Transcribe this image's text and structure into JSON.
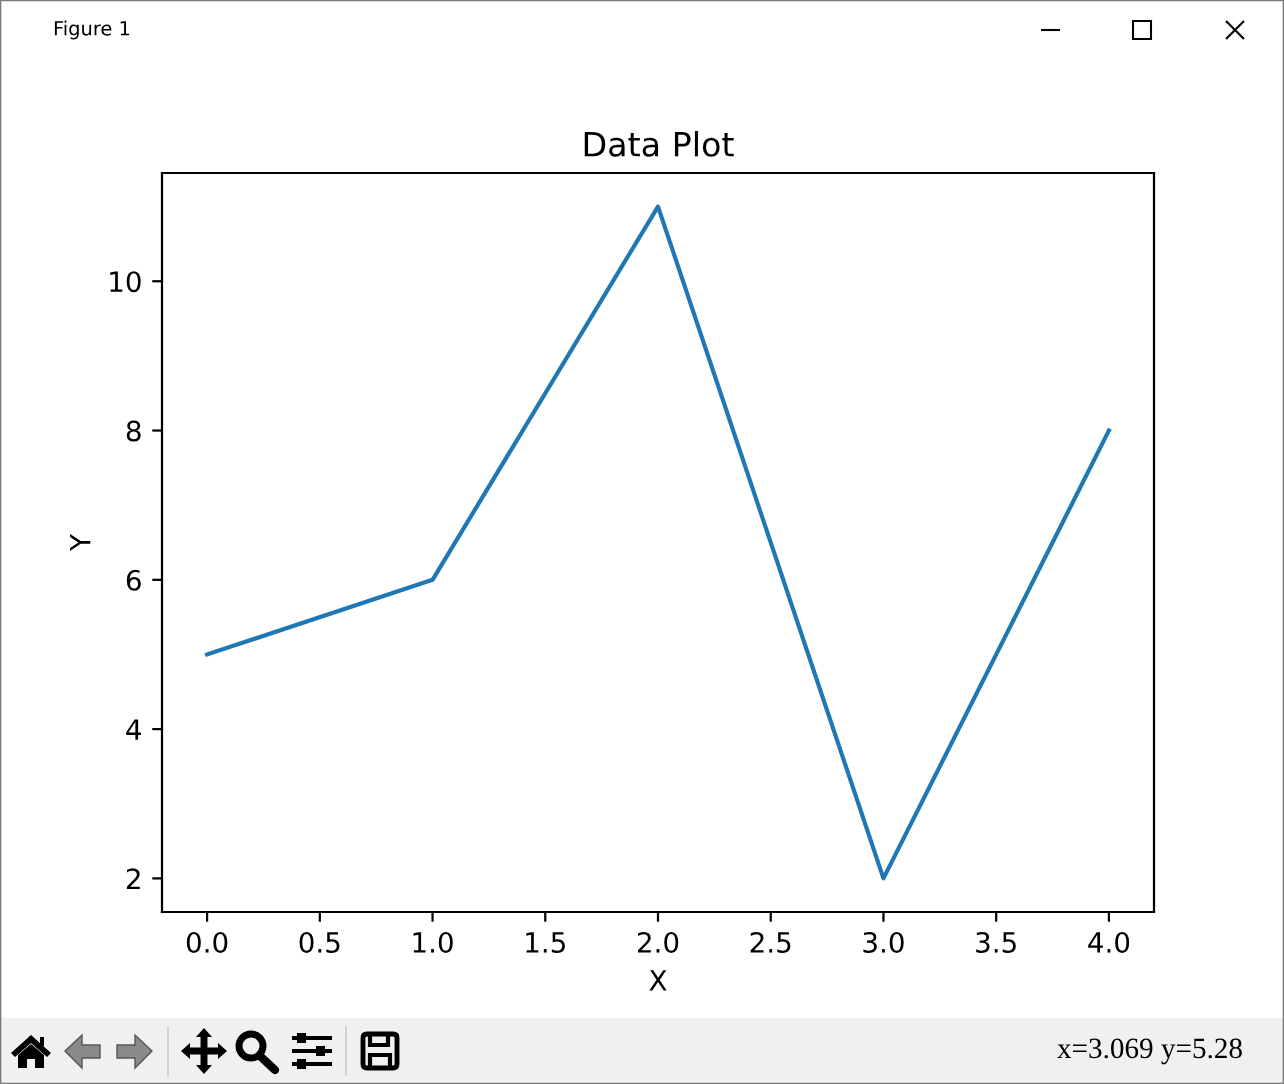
{
  "chart_data": {
    "type": "line",
    "title": "Data Plot",
    "xlabel": "X",
    "ylabel": "Y",
    "x": [
      0,
      1,
      2,
      3,
      4
    ],
    "series": [
      {
        "color": "#1f77b4",
        "values": [
          5,
          6,
          11,
          2,
          8
        ]
      }
    ],
    "xlim": [
      -0.2,
      4.2
    ],
    "ylim": [
      1.55,
      11.45
    ],
    "xticks": [
      {
        "value": 0,
        "label": "0.0"
      },
      {
        "value": 0.5,
        "label": "0.5"
      },
      {
        "value": 1,
        "label": "1.0"
      },
      {
        "value": 1.5,
        "label": "1.5"
      },
      {
        "value": 2,
        "label": "2.0"
      },
      {
        "value": 2.5,
        "label": "2.5"
      },
      {
        "value": 3,
        "label": "3.0"
      },
      {
        "value": 3.5,
        "label": "3.5"
      },
      {
        "value": 4,
        "label": "4.0"
      }
    ],
    "yticks": [
      2,
      4,
      6,
      8,
      10
    ],
    "annotations": [
      "Figure 1",
      "x=3.069 y=5.28"
    ]
  }
}
